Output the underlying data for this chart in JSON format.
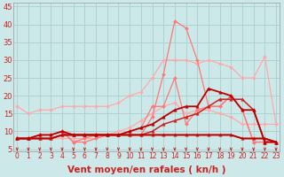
{
  "background_color": "#cce8e8",
  "grid_color": "#aacece",
  "x_ticks": [
    0,
    1,
    2,
    3,
    4,
    5,
    6,
    7,
    8,
    9,
    10,
    11,
    12,
    13,
    14,
    15,
    16,
    17,
    18,
    19,
    20,
    21,
    22,
    23
  ],
  "xlabel": "Vent moyen/en rafales ( kn/h )",
  "ylabel_ticks": [
    5,
    10,
    15,
    20,
    25,
    30,
    35,
    40,
    45
  ],
  "ylim": [
    4.5,
    46
  ],
  "xlim": [
    -0.3,
    23.3
  ],
  "lines": [
    {
      "color": "#ffaaaa",
      "linewidth": 0.9,
      "marker": "D",
      "markersize": 2.0,
      "y": [
        17,
        15,
        16,
        16,
        17,
        17,
        17,
        17,
        17,
        18,
        20,
        21,
        25,
        30,
        30,
        30,
        29,
        30,
        29,
        28,
        25,
        25,
        31,
        12
      ]
    },
    {
      "color": "#ffaaaa",
      "linewidth": 0.9,
      "marker": "D",
      "markersize": 2.0,
      "y": [
        8,
        8,
        8,
        8,
        8,
        8,
        8,
        8,
        9,
        10,
        11,
        13,
        15,
        17,
        18,
        15,
        16,
        16,
        15,
        14,
        12,
        12,
        12,
        12
      ]
    },
    {
      "color": "#ff7777",
      "linewidth": 0.9,
      "marker": "D",
      "markersize": 2.0,
      "y": [
        8,
        8,
        9,
        9,
        10,
        7,
        7,
        8,
        9,
        9,
        9,
        9,
        14,
        26,
        41,
        39,
        30,
        17,
        17,
        20,
        16,
        7,
        7,
        7
      ]
    },
    {
      "color": "#ff7777",
      "linewidth": 0.9,
      "marker": "D",
      "markersize": 2.0,
      "y": [
        8,
        8,
        9,
        9,
        10,
        7,
        8,
        9,
        9,
        9,
        10,
        11,
        17,
        17,
        25,
        12,
        16,
        17,
        17,
        20,
        16,
        7,
        7,
        7
      ]
    },
    {
      "color": "#cc2222",
      "linewidth": 1.1,
      "marker": "^",
      "markersize": 2.5,
      "y": [
        8,
        8,
        8,
        8,
        9,
        9,
        9,
        9,
        9,
        9,
        9,
        9,
        10,
        12,
        13,
        14,
        15,
        17,
        19,
        19,
        19,
        16,
        7,
        7
      ]
    },
    {
      "color": "#cc2222",
      "linewidth": 1.1,
      "marker": "^",
      "markersize": 2.5,
      "y": [
        8,
        8,
        8,
        8,
        9,
        9,
        9,
        9,
        9,
        9,
        9,
        9,
        9,
        9,
        9,
        9,
        9,
        9,
        9,
        9,
        8,
        8,
        8,
        7
      ]
    },
    {
      "color": "#bb0000",
      "linewidth": 1.3,
      "marker": "^",
      "markersize": 2.5,
      "y": [
        8,
        8,
        9,
        9,
        10,
        9,
        9,
        9,
        9,
        9,
        10,
        11,
        12,
        14,
        16,
        17,
        17,
        22,
        21,
        20,
        16,
        16,
        7,
        7
      ]
    },
    {
      "color": "#bb0000",
      "linewidth": 1.3,
      "marker": null,
      "markersize": 0,
      "y": [
        8,
        8,
        8,
        8,
        9,
        9,
        9,
        9,
        9,
        9,
        9,
        9,
        9,
        9,
        9,
        9,
        9,
        9,
        9,
        9,
        8,
        8,
        8,
        7
      ]
    }
  ],
  "arrow_color": "#cc2222",
  "tick_label_color": "#cc2222",
  "tick_label_fontsize": 5.5,
  "xlabel_fontsize": 7.5,
  "xlabel_color": "#cc2222",
  "ylabel_fontsize": 6.0,
  "ylabel_color": "#cc2222"
}
